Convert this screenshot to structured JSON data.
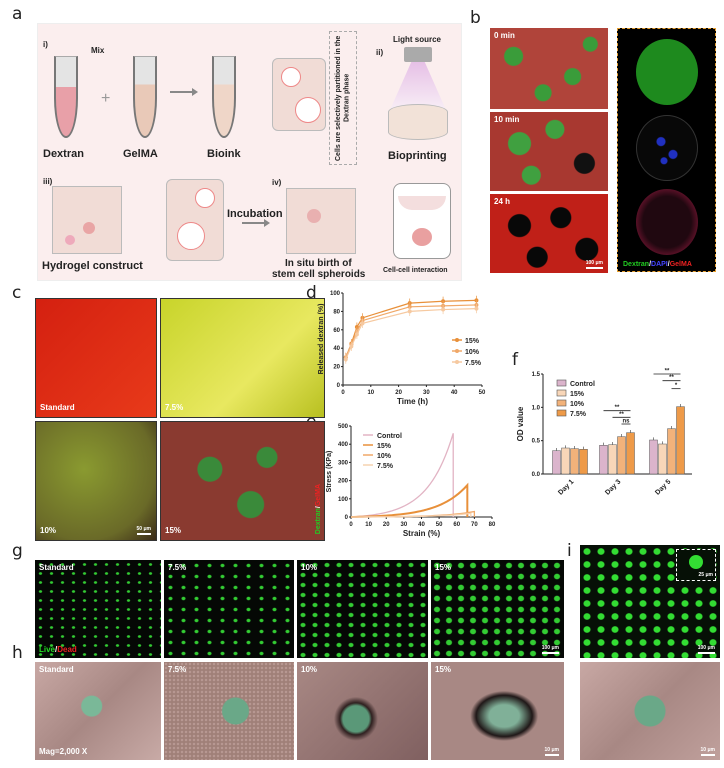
{
  "panels": {
    "a": "a",
    "b": "b",
    "c": "c",
    "d": "d",
    "e": "e",
    "f": "f",
    "g": "g",
    "h": "h",
    "i": "i"
  },
  "a": {
    "i": "i)",
    "ii": "ii)",
    "iii": "iii)",
    "iv": "iv)",
    "mix": "Mix",
    "plus": "+",
    "dextran": "Dextran",
    "gelma": "GelMA",
    "bioink": "Bioink",
    "note": "Cells are selectively partitioned in the Dextran phase",
    "light": "Light source",
    "bioprinting": "Bioprinting",
    "hydrogel": "Hydrogel construct",
    "incubation": "Incubation",
    "insitu1": "In situ birth of",
    "insitu2": "stem cell spheroids",
    "cellcell": "Cell-cell interaction"
  },
  "b": {
    "t0": "0 min",
    "t10": "10 min",
    "t24": "24 h",
    "scale": "100 μm",
    "legend": [
      "Dextran",
      "/",
      "DAPI",
      "/",
      "GelMA"
    ]
  },
  "c": {
    "labels": [
      "Standard",
      "7.5%",
      "10%",
      "15%"
    ],
    "scale": "50 μm",
    "legend": [
      "Dextran",
      "/",
      "GelMA"
    ]
  },
  "g": {
    "labels": [
      "Standard",
      "7.5%",
      "10%",
      "15%"
    ],
    "legend": [
      "Live",
      "/",
      "Dead"
    ],
    "scale": "100 μm"
  },
  "h": {
    "labels": [
      "Standard",
      "7.5%",
      "10%",
      "15%"
    ],
    "mag": "Mag=2,000 X",
    "scale": "10 μm"
  },
  "i": {
    "scale": "100 μm",
    "inset": "25 μm",
    "scale2": "10 μm"
  },
  "chart_data": [
    {
      "id": "d",
      "type": "line",
      "xlabel": "Time (h)",
      "ylabel": "Released dextran (%)",
      "xlim": [
        0,
        50
      ],
      "ylim": [
        0,
        100
      ],
      "xticks": [
        0,
        10,
        20,
        30,
        40,
        50
      ],
      "yticks": [
        0,
        20,
        40,
        60,
        80,
        100
      ],
      "x": [
        1,
        3,
        5,
        7,
        24,
        36,
        48
      ],
      "series": [
        {
          "name": "15%",
          "values": [
            30,
            45,
            63,
            73,
            89,
            91,
            92
          ],
          "color": "#e8903a"
        },
        {
          "name": "10%",
          "values": [
            30,
            44,
            58,
            70,
            85,
            86,
            87
          ],
          "color": "#f0a868"
        },
        {
          "name": "7.5%",
          "values": [
            28,
            42,
            55,
            67,
            80,
            82,
            83
          ],
          "color": "#f6c9a0"
        }
      ],
      "legend": "right"
    },
    {
      "id": "e",
      "type": "line",
      "xlabel": "Strain (%)",
      "ylabel": "Stress (KPa)",
      "xlim": [
        0,
        80
      ],
      "ylim": [
        0,
        500
      ],
      "xticks": [
        0,
        10,
        20,
        30,
        40,
        50,
        60,
        70,
        80
      ],
      "yticks": [
        0,
        100,
        200,
        300,
        400,
        500
      ],
      "series": [
        {
          "name": "Control",
          "max_strain": 58,
          "max_stress": 460,
          "color": "#e2b4c4"
        },
        {
          "name": "15%",
          "max_strain": 66,
          "max_stress": 175,
          "color": "#e8903a"
        },
        {
          "name": "10%",
          "max_strain": 70,
          "max_stress": 30,
          "color": "#f0a868"
        },
        {
          "name": "7.5%",
          "max_strain": 68,
          "max_stress": 20,
          "color": "#f6d2b0"
        }
      ],
      "legend": "top-left"
    },
    {
      "id": "f",
      "type": "bar",
      "ylabel": "OD value",
      "ylim": [
        0,
        1.5
      ],
      "yticks": [
        "0.0",
        "0.5",
        "1.0",
        "1.5"
      ],
      "categories": [
        "Day 1",
        "Day 3",
        "Day 5"
      ],
      "series": [
        {
          "name": "Control",
          "values": [
            0.35,
            0.43,
            0.51
          ],
          "color": "#dbb4cc"
        },
        {
          "name": "15%",
          "values": [
            0.39,
            0.44,
            0.45
          ],
          "color": "#f8d6b8"
        },
        {
          "name": "10%",
          "values": [
            0.38,
            0.56,
            0.68
          ],
          "color": "#f2b27a"
        },
        {
          "name": "7.5%",
          "values": [
            0.37,
            0.62,
            1.01
          ],
          "color": "#ee9a48"
        }
      ],
      "significance": [
        {
          "day": "Day 3",
          "pair": [
            "Control",
            "7.5%"
          ],
          "label": "**"
        },
        {
          "day": "Day 3",
          "pair": [
            "15%",
            "7.5%"
          ],
          "label": "**"
        },
        {
          "day": "Day 3",
          "pair": [
            "10%",
            "7.5%"
          ],
          "label": "ns"
        },
        {
          "day": "Day 5",
          "pair": [
            "Control",
            "7.5%"
          ],
          "label": "**"
        },
        {
          "day": "Day 5",
          "pair": [
            "15%",
            "7.5%"
          ],
          "label": "**"
        },
        {
          "day": "Day 5",
          "pair": [
            "10%",
            "7.5%"
          ],
          "label": "*"
        }
      ],
      "legend": "top-left"
    }
  ]
}
